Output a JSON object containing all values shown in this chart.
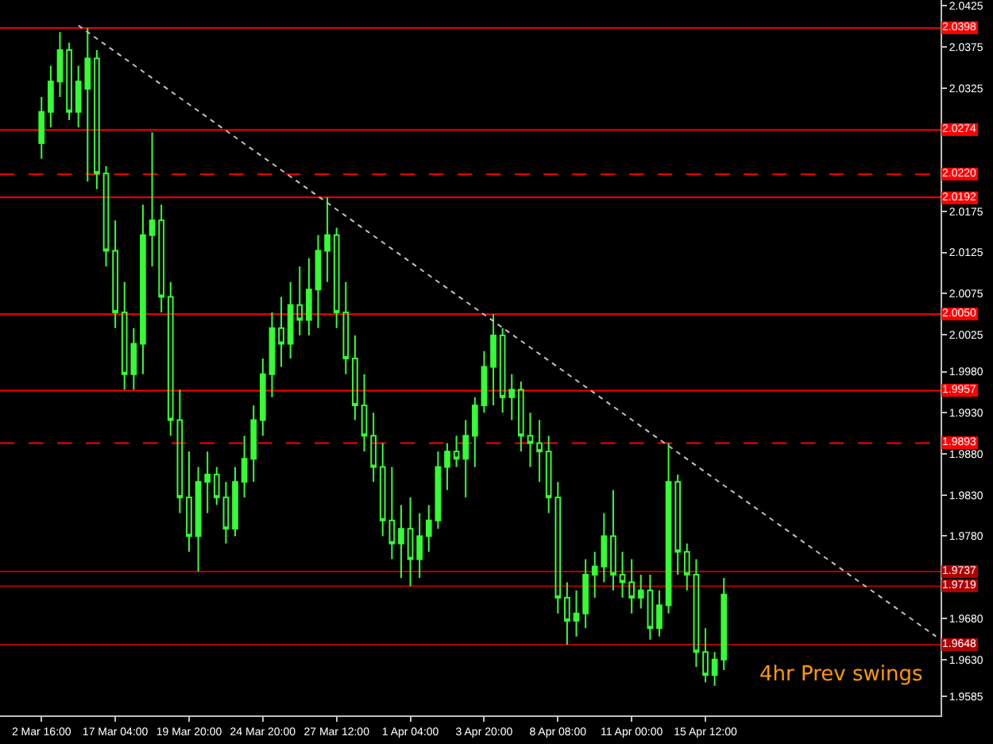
{
  "chart_data": {
    "type": "candlestick",
    "categories": [
      "2 Mar 16:00",
      null,
      null,
      null,
      null,
      null,
      null,
      null,
      "17 Mar 04:00",
      null,
      null,
      null,
      null,
      null,
      null,
      null,
      "19 Mar 20:00",
      null,
      null,
      null,
      null,
      null,
      null,
      null,
      "24 Mar 20:00",
      null,
      null,
      null,
      null,
      null,
      null,
      null,
      "27 Mar 12:00",
      null,
      null,
      null,
      null,
      null,
      null,
      null,
      "1 Apr 04:00",
      null,
      null,
      null,
      null,
      null,
      null,
      null,
      "3 Apr 20:00",
      null,
      null,
      null,
      null,
      null,
      null,
      null,
      "8 Apr 08:00",
      null,
      null,
      null,
      null,
      null,
      null,
      null,
      "11 Apr 00:00",
      null,
      null,
      null,
      null,
      null,
      null,
      null,
      "15 Apr 12:00",
      null,
      null,
      null,
      null,
      null,
      null,
      null,
      null,
      null,
      null,
      null,
      null,
      null,
      null,
      null,
      null,
      null,
      null,
      null,
      null,
      null,
      null,
      null,
      null,
      null
    ],
    "color": "#33ff33",
    "ohlc": [
      [
        2.0258,
        2.0314,
        2.0239,
        2.0296
      ],
      [
        2.0296,
        2.0352,
        2.0277,
        2.0333
      ],
      [
        2.0333,
        2.0393,
        2.0314,
        2.0371
      ],
      [
        2.0371,
        2.038,
        2.0286,
        2.0296
      ],
      [
        2.0296,
        2.0352,
        2.0277,
        2.0333
      ],
      [
        2.0324,
        2.0398,
        2.0211,
        2.0361
      ],
      [
        2.0361,
        2.0371,
        2.0202,
        2.0221
      ],
      [
        2.0221,
        2.023,
        2.0108,
        2.0127
      ],
      [
        2.0127,
        2.0164,
        2.0033,
        2.0052
      ],
      [
        2.0052,
        2.0089,
        1.9958,
        1.9977
      ],
      [
        1.9977,
        2.0033,
        1.9958,
        2.0014
      ],
      [
        2.0014,
        2.0183,
        1.9977,
        2.0146
      ],
      [
        2.0146,
        2.0271,
        2.0108,
        2.0164
      ],
      [
        2.0164,
        2.0183,
        2.0052,
        2.0071
      ],
      [
        2.0071,
        2.0089,
        1.9902,
        1.9921
      ],
      [
        1.9921,
        1.9958,
        1.9808,
        1.9827
      ],
      [
        1.9827,
        1.9883,
        1.9761,
        1.978
      ],
      [
        1.978,
        1.9864,
        1.9737,
        1.9846
      ],
      [
        1.9846,
        1.9883,
        1.9808,
        1.9855
      ],
      [
        1.9855,
        1.9864,
        1.9818,
        1.9827
      ],
      [
        1.9827,
        1.9846,
        1.9771,
        1.9789
      ],
      [
        1.9789,
        1.9864,
        1.978,
        1.9846
      ],
      [
        1.9846,
        1.9902,
        1.9827,
        1.9874
      ],
      [
        1.9874,
        1.9939,
        1.9846,
        1.9921
      ],
      [
        1.9921,
        1.9996,
        1.9902,
        1.9977
      ],
      [
        1.9977,
        2.0052,
        1.9949,
        2.0033
      ],
      [
        2.0033,
        2.0071,
        1.9986,
        2.0014
      ],
      [
        2.0014,
        2.0089,
        1.9996,
        2.0061
      ],
      [
        2.0061,
        2.0108,
        2.0024,
        2.0043
      ],
      [
        2.0043,
        2.0118,
        2.0024,
        2.008
      ],
      [
        2.008,
        2.0146,
        2.0033,
        2.0127
      ],
      [
        2.0127,
        2.0192,
        2.0089,
        2.0146
      ],
      [
        2.0146,
        2.0155,
        2.0033,
        2.0052
      ],
      [
        2.0052,
        2.0089,
        1.9977,
        1.9996
      ],
      [
        1.9996,
        2.0024,
        1.9921,
        1.9939
      ],
      [
        1.9939,
        1.9977,
        1.9883,
        1.9902
      ],
      [
        1.9902,
        1.993,
        1.9846,
        1.9864
      ],
      [
        1.9864,
        1.9893,
        1.978,
        1.9799
      ],
      [
        1.9799,
        1.9864,
        1.9752,
        1.9771
      ],
      [
        1.9771,
        1.9818,
        1.9729,
        1.9789
      ],
      [
        1.9789,
        1.9827,
        1.9719,
        1.9752
      ],
      [
        1.9752,
        1.9808,
        1.9729,
        1.978
      ],
      [
        1.978,
        1.9818,
        1.9761,
        1.9799
      ],
      [
        1.9799,
        1.9883,
        1.9789,
        1.9864
      ],
      [
        1.9864,
        1.9893,
        1.9836,
        1.9883
      ],
      [
        1.9883,
        1.9902,
        1.9864,
        1.9874
      ],
      [
        1.9874,
        1.9921,
        1.9827,
        1.9902
      ],
      [
        1.9902,
        1.9949,
        1.9864,
        1.9939
      ],
      [
        1.9939,
        2.0005,
        1.993,
        1.9986
      ],
      [
        1.9986,
        2.005,
        1.9939,
        2.0024
      ],
      [
        2.0024,
        2.0033,
        1.993,
        1.9949
      ],
      [
        1.9949,
        1.9977,
        1.9921,
        1.9958
      ],
      [
        1.9958,
        1.9968,
        1.9883,
        1.9902
      ],
      [
        1.9902,
        1.993,
        1.9864,
        1.9893
      ],
      [
        1.9893,
        1.9921,
        1.9846,
        1.9883
      ],
      [
        1.9883,
        1.9902,
        1.9808,
        1.9827
      ],
      [
        1.9827,
        1.9846,
        1.9686,
        1.9705
      ],
      [
        1.9705,
        1.9724,
        1.9648,
        1.9677
      ],
      [
        1.9677,
        1.9714,
        1.9658,
        1.9686
      ],
      [
        1.9686,
        1.9752,
        1.9668,
        1.9733
      ],
      [
        1.9733,
        1.9761,
        1.9705,
        1.9743
      ],
      [
        1.9743,
        1.9808,
        1.9724,
        1.978
      ],
      [
        1.978,
        1.9836,
        1.9714,
        1.9733
      ],
      [
        1.9733,
        1.9761,
        1.9705,
        1.9724
      ],
      [
        1.9724,
        1.9752,
        1.9686,
        1.9705
      ],
      [
        1.9705,
        1.9733,
        1.9692,
        1.9714
      ],
      [
        1.9714,
        1.9733,
        1.9654,
        1.9668
      ],
      [
        1.9668,
        1.9714,
        1.9658,
        1.9696
      ],
      [
        1.9696,
        1.9893,
        1.9686,
        1.9846
      ],
      [
        1.9846,
        1.9855,
        1.9733,
        1.9761
      ],
      [
        1.9761,
        1.9771,
        1.9714,
        1.9733
      ],
      [
        1.9733,
        1.9752,
        1.9621,
        1.9639
      ],
      [
        1.9639,
        1.9668,
        1.9602,
        1.9611
      ],
      [
        1.9611,
        1.9639,
        1.9598,
        1.963
      ],
      [
        1.963,
        1.9729,
        1.9617,
        1.9709
      ],
      null,
      null,
      null,
      null,
      null,
      null,
      null,
      null,
      null,
      null,
      null,
      null,
      null,
      null,
      null,
      null,
      null,
      null,
      null,
      null,
      null,
      null,
      null
    ],
    "series": [
      {
        "type": "line",
        "color": "#c0c0c0",
        "line_style": "dotted",
        "values": [
          null,
          null,
          null,
          null,
          2.0401,
          null,
          null,
          null,
          null,
          null,
          null,
          null,
          null,
          null,
          null,
          null,
          null,
          null,
          null,
          null,
          null,
          null,
          null,
          null,
          null,
          null,
          null,
          null,
          null,
          null,
          null,
          null,
          null,
          null,
          null,
          null,
          null,
          null,
          null,
          null,
          null,
          null,
          null,
          null,
          null,
          null,
          null,
          null,
          null,
          null,
          null,
          null,
          null,
          null,
          null,
          null,
          null,
          null,
          null,
          null,
          null,
          null,
          null,
          null,
          null,
          null,
          null,
          null,
          null,
          null,
          null,
          null,
          null,
          null,
          null,
          null,
          null,
          null,
          null,
          null,
          null,
          null,
          null,
          null,
          null,
          null,
          null,
          null,
          null,
          null,
          null,
          null,
          null,
          null,
          null,
          null,
          null,
          1.9658
        ]
      }
    ],
    "ylim": [
      1.9562,
      2.0432
    ],
    "yticks": [
      2.0425,
      2.0375,
      2.0325,
      2.0175,
      2.0125,
      2.0075,
      2.0025,
      {
        "value": 1.998,
        "label": "1.9980"
      },
      {
        "value": 1.993,
        "label": "1.9930"
      },
      {
        "value": 1.988,
        "label": "1.9880"
      },
      {
        "value": 1.983,
        "label": "1.9830"
      },
      {
        "value": 1.978,
        "label": "1.9780"
      },
      {
        "value": 1.968,
        "label": "1.9680"
      },
      {
        "value": 1.963,
        "label": "1.9630"
      },
      1.9585
    ],
    "ref_lines": [
      {
        "axis": "y",
        "value": 2.0398,
        "label": "2.0398",
        "color": "#ff0000"
      },
      {
        "axis": "y",
        "value": 2.0274,
        "label": "2.0274",
        "color": "#ff0000"
      },
      {
        "axis": "y",
        "value": 2.022,
        "label": "2.0220",
        "color": "#ff0000",
        "line_style": "dashed"
      },
      {
        "axis": "y",
        "value": 2.0192,
        "label": "2.0192",
        "color": "#ff0000"
      },
      {
        "axis": "y",
        "value": 2.005,
        "label": "2.0050",
        "color": "#ff0000"
      },
      {
        "axis": "y",
        "value": 1.9957,
        "label": "1.9957",
        "color": "#ff0000"
      },
      {
        "axis": "y",
        "value": 1.9893,
        "label": "1.9893",
        "color": "#ff0000",
        "line_style": "dashed"
      },
      {
        "axis": "y",
        "value": 1.9737,
        "label": "1.9737",
        "color": "#b00000"
      },
      {
        "axis": "y",
        "value": 1.9719,
        "label": "1.9719",
        "color": "#b00000"
      },
      {
        "axis": "y",
        "value": 1.9648,
        "label": "1.9648",
        "color": "#b00000"
      }
    ],
    "annotations": [
      "4hr Prev swings"
    ]
  }
}
